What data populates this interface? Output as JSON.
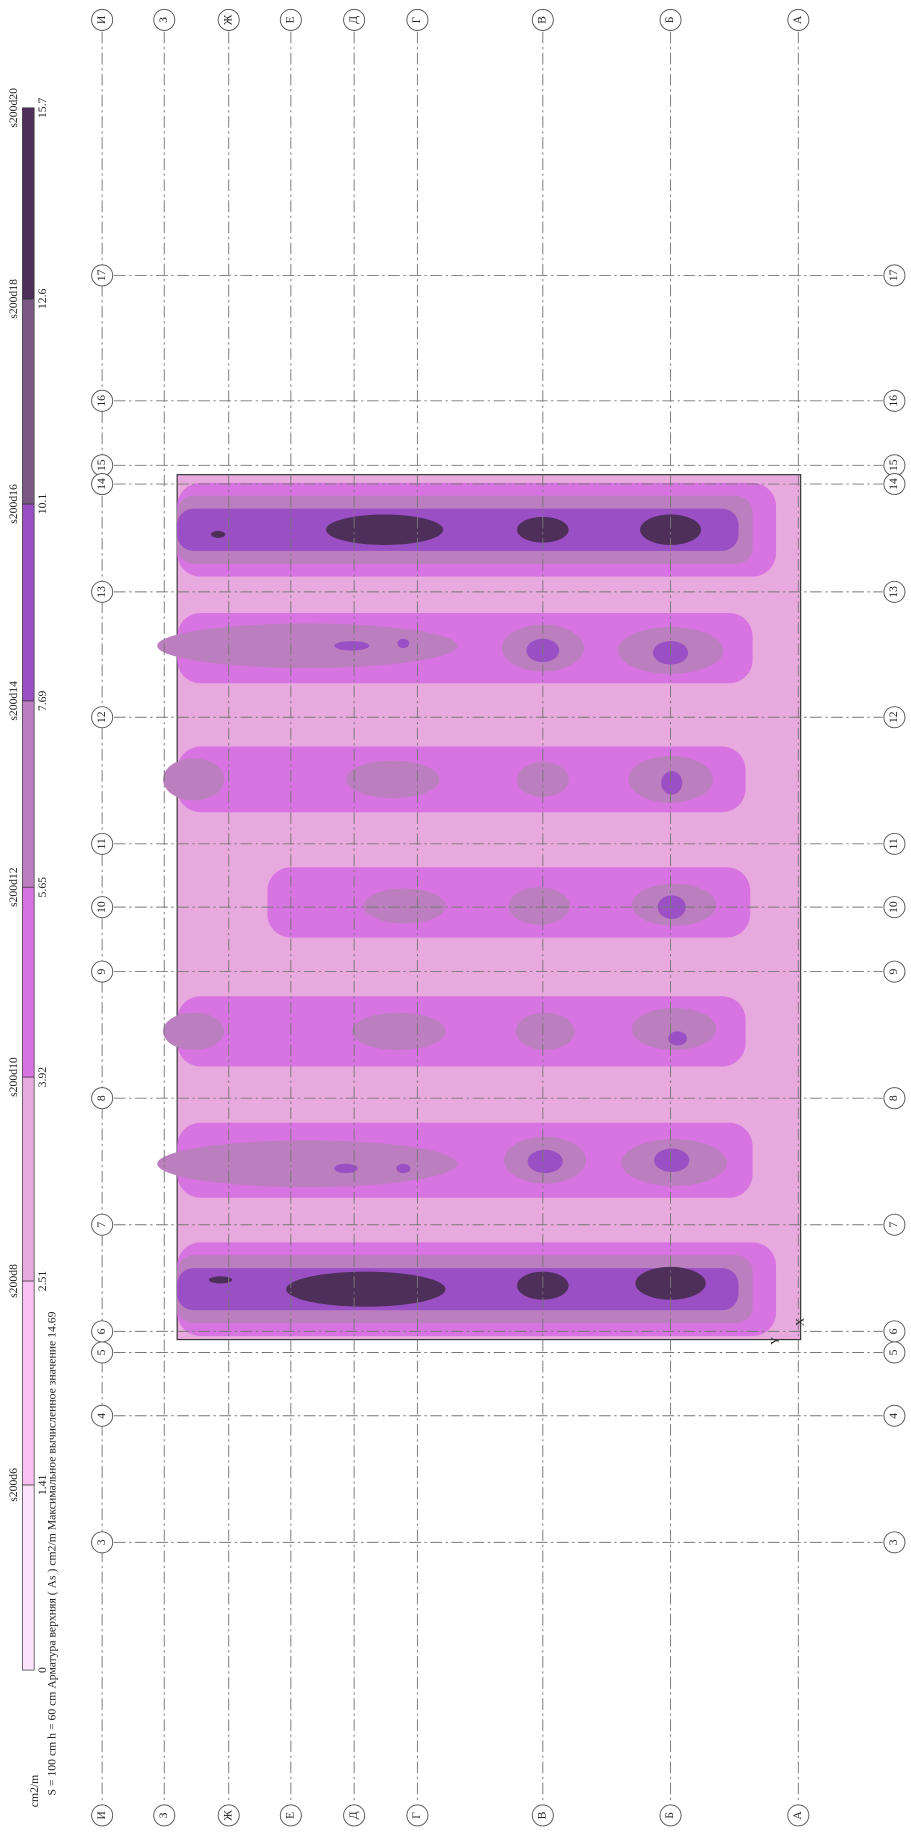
{
  "axes": {
    "letters": [
      "И",
      "З",
      "Ж",
      "Е",
      "Д",
      "Г",
      "В",
      "Б",
      "А"
    ],
    "numbers": [
      "17",
      "16",
      "15",
      "14",
      "13",
      "12",
      "11",
      "10",
      "9",
      "8",
      "7",
      "6",
      "5",
      "4",
      "3"
    ]
  },
  "legend": {
    "unit": "cm2/m",
    "levels": [
      "0",
      "1.41",
      "2.51",
      "3.92",
      "5.65",
      "7.69",
      "10.1",
      "12.6",
      "15.7"
    ],
    "names": [
      "s200d6",
      "s200d8",
      "s200d10",
      "s200d12",
      "s200d14",
      "s200d16",
      "s200d18",
      "s200d20"
    ],
    "colors": [
      "#fde2fb",
      "#f9c0f3",
      "#e8a9de",
      "#d874e2",
      "#bb7ebe",
      "#9a4fc4",
      "#7a5a82",
      "#4e2f5a"
    ]
  },
  "caption": "S = 100 cm  h = 60 cm  Арматура верхняя ( As ) cm2/m   Максимальное вычисленное значение 14.69",
  "local_axes": {
    "x": "X",
    "y": "Y"
  }
}
